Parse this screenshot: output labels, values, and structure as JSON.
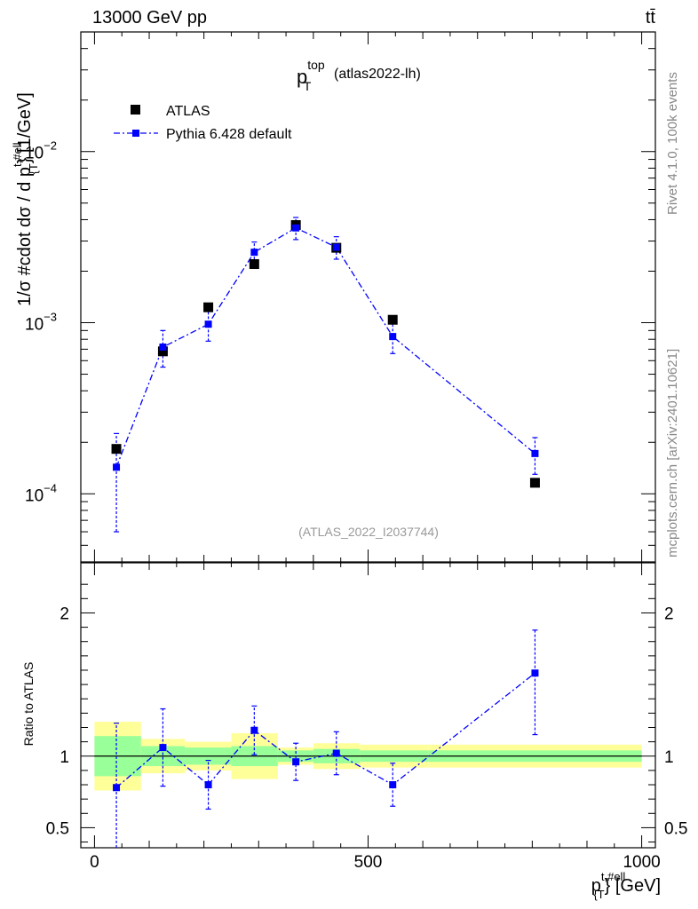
{
  "header": {
    "energy_label": "13000 GeV pp",
    "process_label": "tt̄"
  },
  "side_labels": {
    "rivet": "Rivet 4.1.0,  100k events",
    "mcplots": "mcplots.cern.ch [arXiv:2401.10621]"
  },
  "colors": {
    "data": "#000000",
    "mc": "#0000ff",
    "band_inner": "#99ff99",
    "band_outer": "#ffff99",
    "watermark": "#999999"
  },
  "chart_data": [
    {
      "type": "scatter",
      "title": "p_T^top (atlas2022-lh)",
      "title_main": "p",
      "title_sup": "top",
      "title_sub": "T",
      "title_suffix": "(atlas2022-lh)",
      "watermark": "(ATLAS_2022_I2037744)",
      "ylabel": "1/σ #cdot dσ / d p^{t,#ell}_{T} [1/GeV]",
      "ylabel_parts": {
        "a": "1/σ #cdot dσ / d p",
        "sup": "t,#ell",
        "sub": "{T",
        "b": "} [1/GeV]"
      },
      "yscale": "log",
      "ylim": [
        4e-05,
        0.05
      ],
      "xlim": [
        -25,
        1025
      ],
      "y_ticks": [
        {
          "value": 0.0001,
          "mantissa": "10",
          "exp": "−4"
        },
        {
          "value": 0.001,
          "mantissa": "10",
          "exp": "−3"
        },
        {
          "value": 0.01,
          "mantissa": "10",
          "exp": "−2"
        }
      ],
      "legend_position": "top-left",
      "legend": [
        {
          "name": "ATLAS",
          "style": "square-marker"
        },
        {
          "name": "Pythia 6.428 default",
          "style": "dash-dot-line-square"
        }
      ],
      "series": [
        {
          "name": "ATLAS",
          "x": [
            40,
            125,
            208,
            292,
            368,
            442,
            545,
            805
          ],
          "y": [
            0.000183,
            0.00068,
            0.00123,
            0.0022,
            0.00372,
            0.00274,
            0.00104,
            0.000116
          ]
        },
        {
          "name": "Pythia 6.428 default",
          "x": [
            40,
            125,
            208,
            292,
            368,
            442,
            545,
            805
          ],
          "y": [
            0.000143,
            0.00072,
            0.00098,
            0.00258,
            0.00358,
            0.00276,
            0.00083,
            0.000172
          ],
          "y_low": [
            6e-05,
            0.00055,
            0.00078,
            0.00221,
            0.00306,
            0.00235,
            0.00066,
            0.00013
          ],
          "y_high": [
            0.000225,
            0.0009,
            0.00118,
            0.00296,
            0.00412,
            0.00318,
            0.001,
            0.000213
          ]
        }
      ]
    },
    {
      "type": "scatter",
      "ylabel": "Ratio to ATLAS",
      "xlabel": "p^{t,#ell}_{T} [GeV]",
      "xlabel_parts": {
        "a": "p",
        "sup": "t,#ell",
        "sub": "{T",
        "b": "} [GeV]"
      },
      "xlim": [
        -25,
        1025
      ],
      "ylim": [
        0.36,
        2.35
      ],
      "x_ticks": [
        {
          "value": 0,
          "label": "0"
        },
        {
          "value": 500,
          "label": "500"
        },
        {
          "value": 1000,
          "label": "1000"
        }
      ],
      "y_ticks": [
        {
          "value": 0.5,
          "label": "0.5"
        },
        {
          "value": 1,
          "label": "1"
        },
        {
          "value": 2,
          "label": "2"
        }
      ],
      "uncertainty_bands": {
        "bin_edges": [
          0,
          85,
          165,
          250,
          335,
          400,
          485,
          610,
          1000
        ],
        "inner": [
          [
            0.86,
            1.14
          ],
          [
            0.93,
            1.07
          ],
          [
            0.94,
            1.06
          ],
          [
            0.93,
            1.07
          ],
          [
            0.96,
            1.04
          ],
          [
            0.95,
            1.05
          ],
          [
            0.96,
            1.04
          ],
          [
            0.96,
            1.04
          ]
        ],
        "outer": [
          [
            0.76,
            1.24
          ],
          [
            0.88,
            1.12
          ],
          [
            0.9,
            1.1
          ],
          [
            0.84,
            1.16
          ],
          [
            0.94,
            1.06
          ],
          [
            0.91,
            1.09
          ],
          [
            0.92,
            1.08
          ],
          [
            0.92,
            1.08
          ]
        ]
      },
      "series": [
        {
          "name": "Pythia 6.428 default",
          "x": [
            40,
            125,
            208,
            292,
            368,
            442,
            545,
            805
          ],
          "y": [
            0.78,
            1.06,
            0.8,
            1.18,
            0.96,
            1.02,
            0.8,
            1.58
          ],
          "y_low": [
            0.33,
            0.79,
            0.63,
            1.01,
            0.83,
            0.87,
            0.65,
            1.15
          ],
          "y_high": [
            1.23,
            1.33,
            0.97,
            1.35,
            1.09,
            1.17,
            0.95,
            1.88
          ]
        }
      ]
    }
  ]
}
